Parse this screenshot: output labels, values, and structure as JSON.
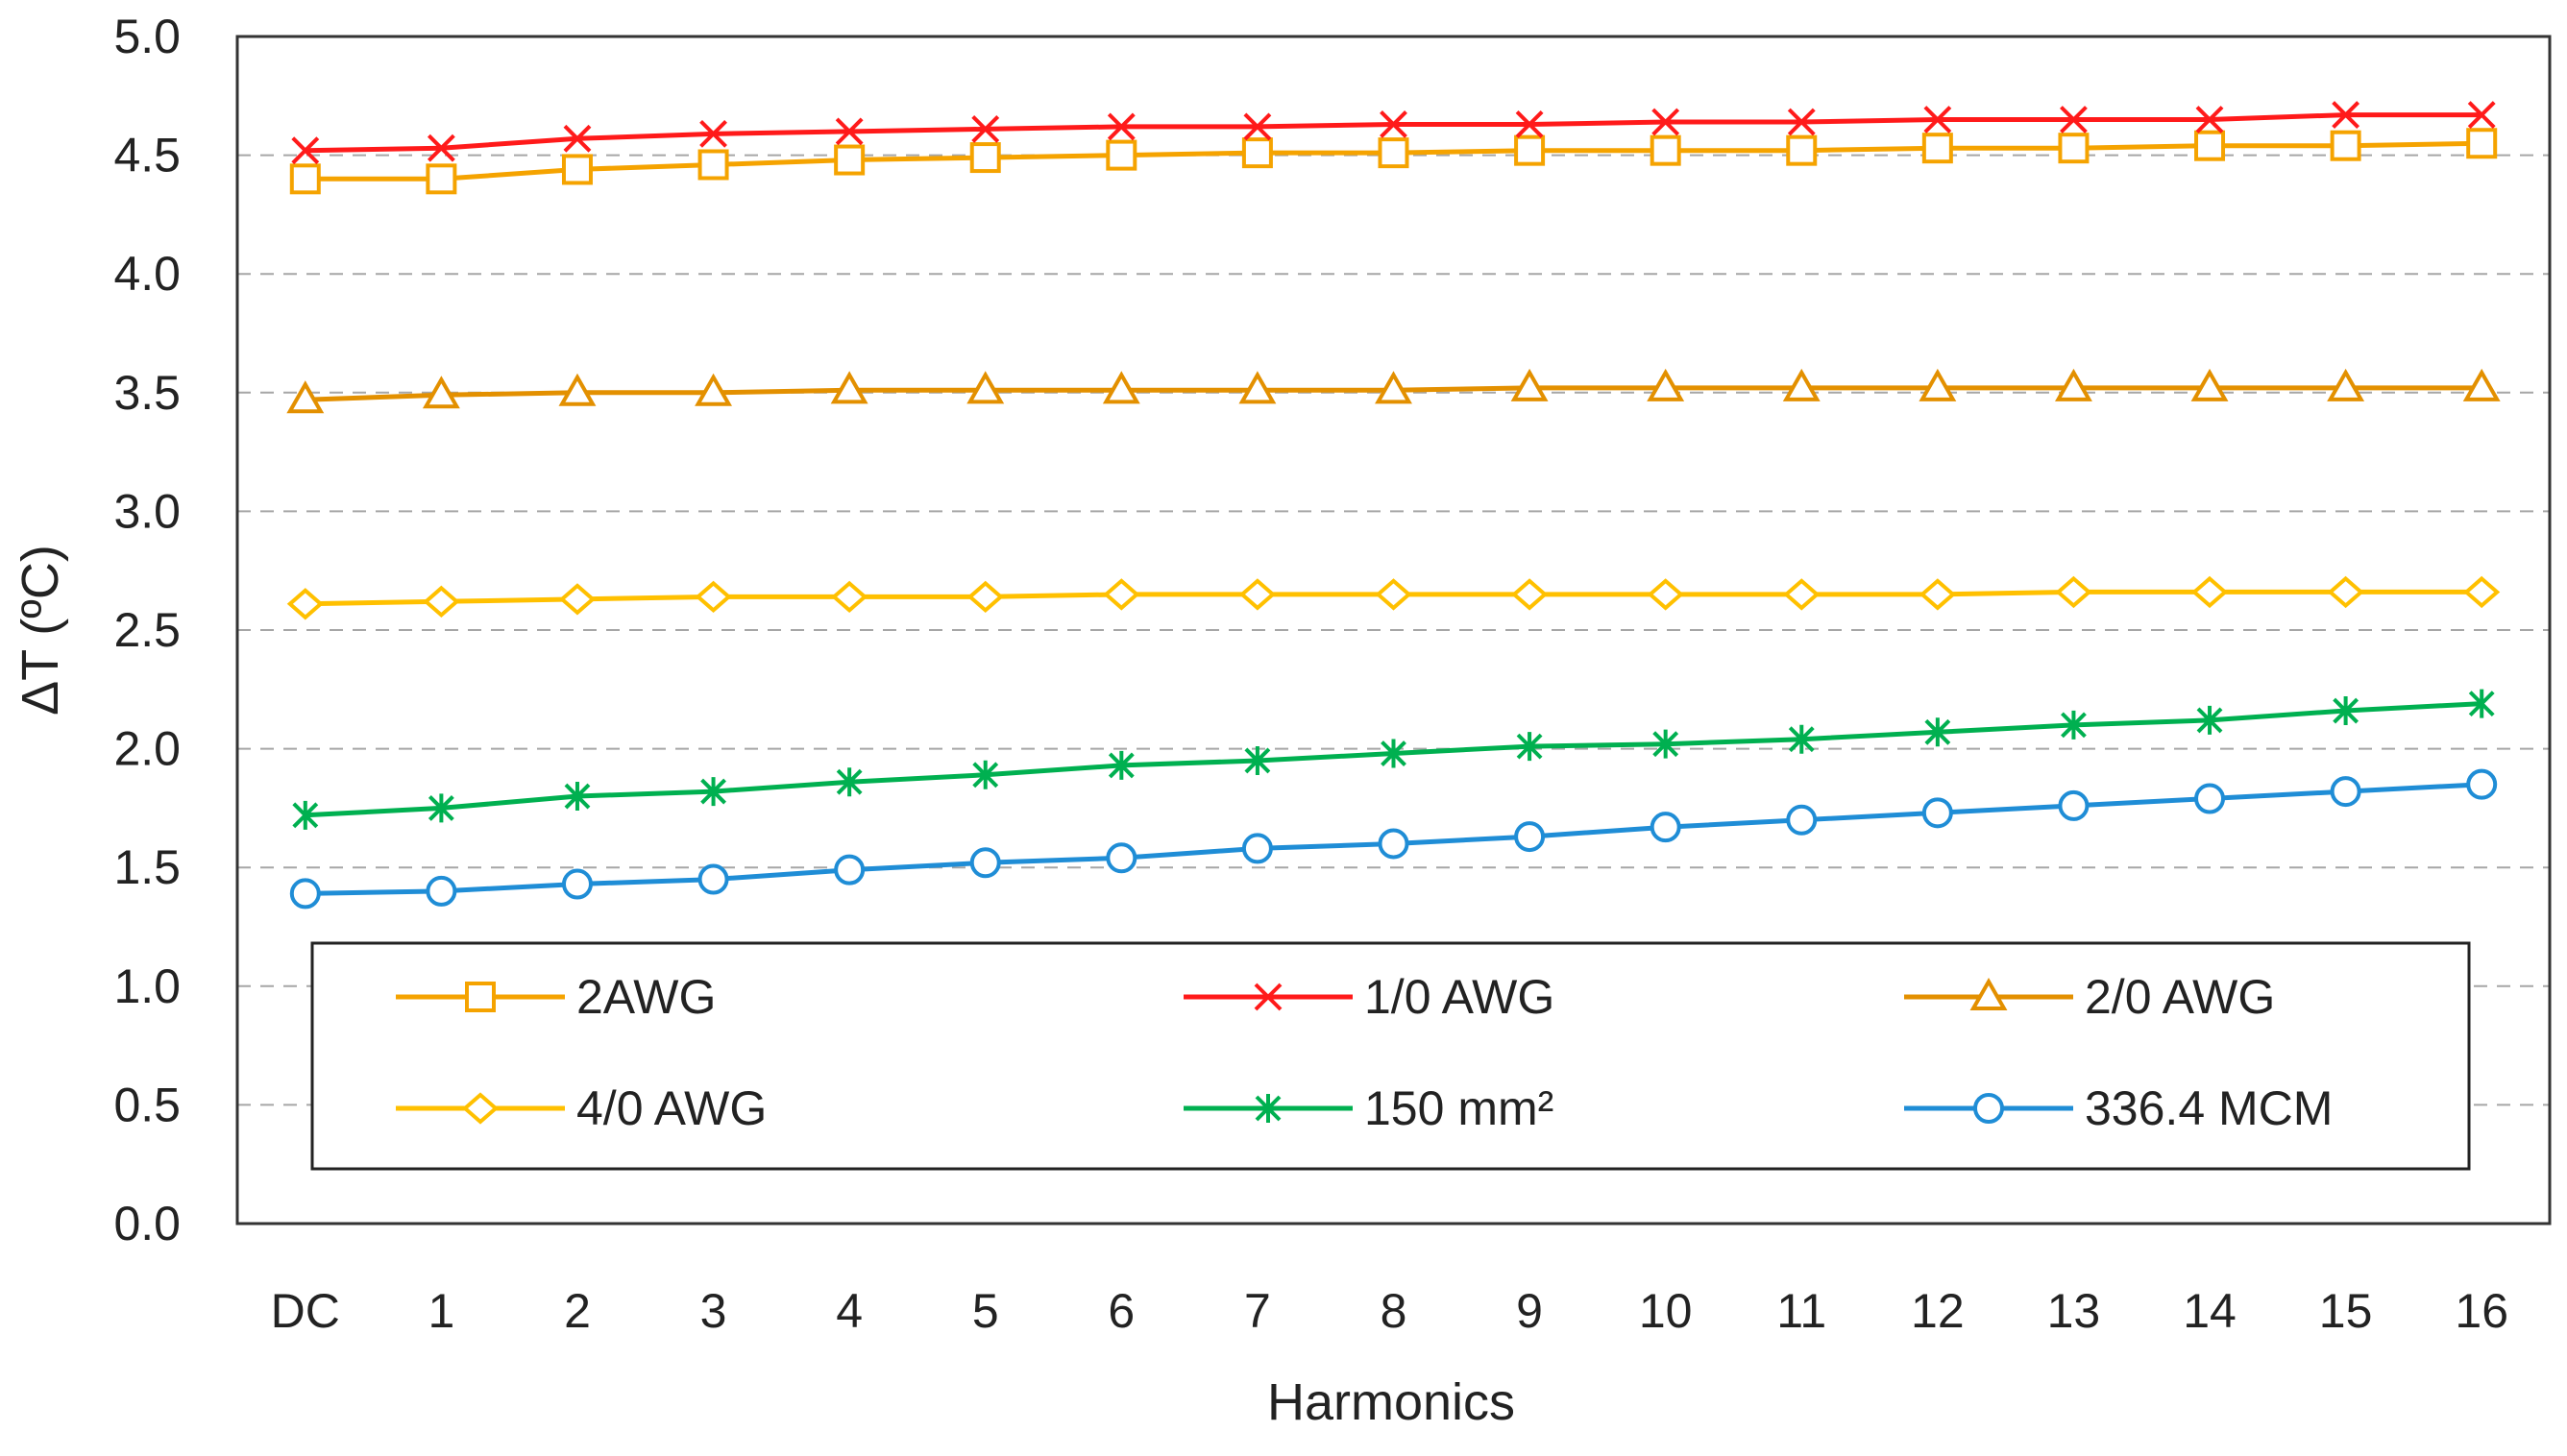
{
  "chart_data": {
    "type": "line",
    "title": "",
    "xlabel": "Harmonics",
    "ylabel": "ΔT (ºC)",
    "categories": [
      "DC",
      "1",
      "2",
      "3",
      "4",
      "5",
      "6",
      "7",
      "8",
      "9",
      "10",
      "11",
      "12",
      "13",
      "14",
      "15",
      "16"
    ],
    "ylim": [
      0,
      5
    ],
    "yticks": [
      "0.0",
      "0.5",
      "1.0",
      "1.5",
      "2.0",
      "2.5",
      "3.0",
      "3.5",
      "4.0",
      "4.5",
      "5.0"
    ],
    "grid": "horizontal dashed",
    "legend_position": "bottom-inside",
    "series": [
      {
        "name": "2AWG",
        "marker": "square",
        "color": "#F5A300",
        "values": [
          4.4,
          4.4,
          4.44,
          4.46,
          4.48,
          4.49,
          4.5,
          4.51,
          4.51,
          4.52,
          4.52,
          4.52,
          4.53,
          4.53,
          4.54,
          4.54,
          4.55
        ]
      },
      {
        "name": "1/0 AWG",
        "marker": "x",
        "color": "#FF1A1A",
        "values": [
          4.52,
          4.53,
          4.57,
          4.59,
          4.6,
          4.61,
          4.62,
          4.62,
          4.63,
          4.63,
          4.64,
          4.64,
          4.65,
          4.65,
          4.65,
          4.67,
          4.67
        ]
      },
      {
        "name": "2/0 AWG",
        "marker": "triangle",
        "color": "#E39000",
        "values": [
          3.47,
          3.49,
          3.5,
          3.5,
          3.51,
          3.51,
          3.51,
          3.51,
          3.51,
          3.52,
          3.52,
          3.52,
          3.52,
          3.52,
          3.52,
          3.52,
          3.52
        ]
      },
      {
        "name": "4/0 AWG",
        "marker": "diamond",
        "color": "#FFC000",
        "values": [
          2.61,
          2.62,
          2.63,
          2.64,
          2.64,
          2.64,
          2.65,
          2.65,
          2.65,
          2.65,
          2.65,
          2.65,
          2.65,
          2.66,
          2.66,
          2.66,
          2.66
        ]
      },
      {
        "name": "150 mm²",
        "marker": "asterisk",
        "color": "#00B050",
        "values": [
          1.72,
          1.75,
          1.8,
          1.82,
          1.86,
          1.89,
          1.93,
          1.95,
          1.98,
          2.01,
          2.02,
          2.04,
          2.07,
          2.1,
          2.12,
          2.16,
          2.19
        ]
      },
      {
        "name": "336.4 MCM",
        "marker": "circle",
        "color": "#1F8DD6",
        "values": [
          1.39,
          1.4,
          1.43,
          1.45,
          1.49,
          1.52,
          1.54,
          1.58,
          1.6,
          1.63,
          1.67,
          1.7,
          1.73,
          1.76,
          1.79,
          1.82,
          1.85
        ]
      }
    ]
  }
}
